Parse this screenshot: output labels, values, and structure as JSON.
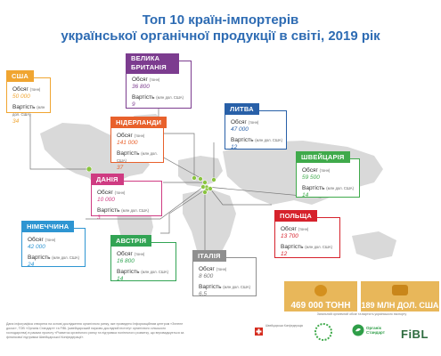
{
  "title_line1": "Топ 10 країн-імпортерів",
  "title_line2": "української органічної продукції в світі, 2019 рік",
  "labels": {
    "volume": "Обсяг",
    "volume_unit": "(тонн)",
    "value": "Вартість",
    "value_unit": "(млн дол. США)"
  },
  "colors": {
    "map": "#d9d9d9",
    "markers": "#8ac43f",
    "usa": "#f0a531",
    "uk": "#7c3c8f",
    "netherlands": "#e8612c",
    "lithuania": "#2860a8",
    "switzerland": "#3faa4b",
    "denmark": "#cf3b82",
    "germany": "#2e95d2",
    "austria": "#32a454",
    "poland": "#d6222c",
    "italy": "#8f8f8f",
    "totals": "#e8b75a"
  },
  "chart_data": {
    "type": "table",
    "title": "Топ 10 країн-імпортерів української органічної продукції в світі, 2019 рік",
    "columns": [
      "Країна",
      "Обсяг (тонн)",
      "Вартість (млн дол. США)"
    ],
    "rows": [
      {
        "country": "США",
        "volume": "50 000",
        "value": "34"
      },
      {
        "country": "ВЕЛИКА БРИТАНІЯ",
        "volume": "36 800",
        "value": "9"
      },
      {
        "country": "НІДЕРЛАНДИ",
        "volume": "141 000",
        "value": "37"
      },
      {
        "country": "ЛИТВА",
        "volume": "47 000",
        "value": "12"
      },
      {
        "country": "ШВЕЙЦАРІЯ",
        "volume": "59 500",
        "value": "14"
      },
      {
        "country": "ДАНІЯ",
        "volume": "10 000",
        "value": "3"
      },
      {
        "country": "ПОЛЬЩА",
        "volume": "13 700",
        "value": "12"
      },
      {
        "country": "НІМЕЧЧИНА",
        "volume": "42 000",
        "value": "24"
      },
      {
        "country": "АВСТРІЯ",
        "volume": "16 800",
        "value": "14"
      },
      {
        "country": "ІТАЛІЯ",
        "volume": "8 600",
        "value": "6,5"
      }
    ],
    "totals": {
      "volume": "469 000 ТОНН",
      "value": "189 МЛН ДОЛ. США"
    }
  },
  "totals_caption": "Загальний органічний обсяг та вартість українського експорту",
  "footer": {
    "text": "Дана інфографіка створена на основі дослідження органічного ринку, яке проведено Інформаційним центром «Зелене досьє», ТОВ «Органік Стандарт» та FiBL (швейцарський науково-дослідний інститут органічного сільського господарства) в рамках проекту «Розвиток органічного ринку та підтримка політичного розвитку, що впроваджується за фінансової підтримки Швейцарської Конфедерації».",
    "swiss_text": "Швейцарська Конфедерація",
    "organic_standard": "Органік Стандарт",
    "fibl": "FiBL"
  }
}
